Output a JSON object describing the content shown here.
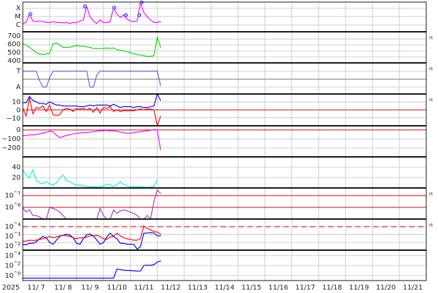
{
  "chart_data": {
    "type": "line",
    "x_axis": {
      "year_label": "2025",
      "tick_labels": [
        "11/ 7",
        "11/ 8",
        "11/ 9",
        "11/10",
        "11/11",
        "11/12",
        "11/13",
        "11/14",
        "11/15",
        "11/16",
        "11/17",
        "11/18",
        "11/19",
        "11/20",
        "11/21"
      ],
      "range": [
        "11/7 00:00",
        "11/22 00:00"
      ],
      "grid": true
    },
    "x": [
      "11/7 00:00",
      "11/7 03:00",
      "11/7 06:00",
      "11/7 09:00",
      "11/7 12:00",
      "11/7 15:00",
      "11/7 18:00",
      "11/7 21:00",
      "11/8 00:00",
      "11/8 03:00",
      "11/8 06:00",
      "11/8 09:00",
      "11/8 12:00",
      "11/8 15:00",
      "11/8 18:00",
      "11/8 21:00",
      "11/9 00:00",
      "11/9 03:00",
      "11/9 06:00",
      "11/9 09:00",
      "11/9 12:00",
      "11/9 15:00",
      "11/9 18:00",
      "11/9 21:00",
      "11/10 00:00",
      "11/10 03:00",
      "11/10 06:00",
      "11/10 09:00",
      "11/10 12:00",
      "11/10 15:00",
      "11/10 18:00",
      "11/10 21:00",
      "11/11 00:00",
      "11/11 03:00",
      "11/11 06:00",
      "11/11 09:00",
      "11/11 12:00",
      "11/11 15:00",
      "11/11 18:00",
      "11/11 21:00",
      "11/12 00:00",
      "11/12 03:00"
    ],
    "panels": [
      {
        "id": "xray",
        "scale": "log",
        "ylim": [
          1.5e-07,
          0.00056
        ],
        "grid": true,
        "ticks": [
          {
            "value": 1e-06,
            "label": "C"
          },
          {
            "value": 1e-05,
            "label": "M"
          },
          {
            "value": 0.0001,
            "label": "X"
          }
        ],
        "series": [
          {
            "color": "#ff00ff",
            "values": [
              1.5e-06,
              2e-06,
              2e-05,
              3e-06,
              2.5e-06,
              3e-06,
              2.5e-06,
              2e-06,
              2e-06,
              2.5e-06,
              2e-06,
              2e-06,
              1.8e-06,
              2e-06,
              1.5e-06,
              2e-06,
              2e-06,
              3e-06,
              4e-06,
              0.00017,
              1e-05,
              3e-06,
              1.5e-06,
              4e-06,
              2e-06,
              2e-06,
              2.5e-06,
              0.00012,
              2e-05,
              8e-06,
              1.5e-05,
              5e-06,
              3e-06,
              2.5e-06,
              3e-06,
              0.0005,
              3e-05,
              1e-05,
              4e-06,
              2e-06,
              2e-06,
              2.5e-06
            ]
          }
        ],
        "flare_markers": {
          "color": "#3333ff",
          "events": [
            {
              "time": "11/7 06:45",
              "flux": 2e-05
            },
            {
              "time": "11/9 07:30",
              "flux": 0.00017
            },
            {
              "time": "11/10 09:30",
              "flux": 0.00012
            },
            {
              "time": "11/10 20:00",
              "flux": 1.5e-05
            },
            {
              "time": "11/11 08:00",
              "flux": 1.5e-05
            },
            {
              "time": "11/11 10:00",
              "flux": 0.0005
            }
          ]
        },
        "right_label": ""
      },
      {
        "id": "speed",
        "scale": "linear",
        "ylim": [
          300,
          820
        ],
        "grid": true,
        "ticks": [
          {
            "value": 400,
            "label": "400"
          },
          {
            "value": 500,
            "label": "500"
          },
          {
            "value": 600,
            "label": "600"
          },
          {
            "value": 700,
            "label": "700"
          }
        ],
        "series": [
          {
            "color": "#00e000",
            "values": [
              620,
              600,
              560,
              520,
              470,
              450,
              440,
              450,
              460,
              620,
              630,
              600,
              560,
              560,
              560,
              580,
              590,
              580,
              580,
              570,
              560,
              540,
              540,
              540,
              540,
              550,
              540,
              550,
              520,
              510,
              500,
              490,
              470,
              455,
              440,
              430,
              420,
              410,
              410,
              420,
              730,
              560
            ]
          }
        ],
        "right_label": "rt"
      },
      {
        "id": "sector",
        "scale": "linear",
        "ylim": [
          -1.87,
          2.04
        ],
        "grid": true,
        "ticks": [
          {
            "value": -1,
            "label": "A"
          },
          {
            "value": 1,
            "label": "T"
          }
        ],
        "zero_line": {
          "value": 0,
          "color": "#777777"
        },
        "series": [
          {
            "color": "#5566dd",
            "values": [
              1,
              1,
              1,
              1,
              1,
              -0.2,
              -1,
              -1,
              0.2,
              1,
              1,
              1,
              1,
              1,
              1,
              1,
              1,
              1,
              1,
              1,
              -1,
              -1,
              0.5,
              1,
              1,
              1,
              1,
              1,
              1,
              1,
              1,
              1,
              1,
              1,
              1,
              1,
              1,
              1,
              1,
              1,
              1,
              -0.8
            ]
          }
        ],
        "right_label": "rt"
      },
      {
        "id": "imf",
        "scale": "linear",
        "ylim": [
          -20,
          20
        ],
        "grid": true,
        "ticks": [
          {
            "value": -10,
            "label": "−10"
          },
          {
            "value": 0,
            "label": "0"
          },
          {
            "value": 10,
            "label": "10"
          }
        ],
        "ref_lines": [
          {
            "value": 0,
            "color": "#cc0000",
            "dashed": false
          }
        ],
        "series": [
          {
            "color": "#0000ff",
            "values": [
              9,
              9,
              17,
              12,
              10,
              8,
              8,
              7,
              10,
              8,
              6,
              6,
              5,
              5,
              5,
              5,
              5,
              4,
              4,
              5,
              6,
              5,
              6,
              6,
              6,
              6,
              5,
              7,
              5,
              3,
              4,
              4,
              4,
              3,
              4,
              4,
              3,
              3,
              4,
              5,
              22,
              12
            ]
          },
          {
            "color": "#ff0000",
            "values": [
              2,
              -8,
              15,
              -5,
              3,
              2,
              5,
              -2,
              6,
              -6,
              -7,
              -6,
              0,
              2,
              1,
              -2,
              2,
              1,
              2,
              0,
              2,
              -3,
              3,
              -4,
              3,
              2,
              4,
              -2,
              0,
              -2,
              -1,
              -1,
              -1,
              -1,
              0,
              1,
              0,
              1,
              1,
              0,
              -25,
              -8
            ]
          }
        ],
        "right_label": "rt"
      },
      {
        "id": "dst",
        "scale": "linear",
        "ylim": [
          -300,
          46
        ],
        "grid": true,
        "ticks": [
          {
            "value": -200,
            "label": "−200"
          },
          {
            "value": -100,
            "label": "−100"
          },
          {
            "value": 0,
            "label": "0"
          }
        ],
        "ref_lines": [
          {
            "value": 0,
            "color": "#cc0000",
            "dashed": false
          }
        ],
        "series": [
          {
            "color": "#ff00ff",
            "values": [
              -65,
              -65,
              -55,
              -55,
              -50,
              -45,
              -35,
              -25,
              -15,
              -20,
              -60,
              -85,
              -75,
              -60,
              -55,
              -45,
              -40,
              -35,
              -30,
              -30,
              -25,
              -20,
              -15,
              -10,
              -8,
              -5,
              -10,
              -12,
              -15,
              -25,
              -30,
              -40,
              -35,
              -30,
              -25,
              -20,
              -15,
              -10,
              -5,
              5,
              0,
              -220
            ]
          }
        ],
        "right_label": ""
      },
      {
        "id": "density",
        "scale": "linear",
        "ylim": [
          0,
          60
        ],
        "grid": true,
        "ticks": [
          {
            "value": 20,
            "label": "20"
          },
          {
            "value": 40,
            "label": "40"
          }
        ],
        "series": [
          {
            "color": "#00f0f0",
            "values": [
              35,
              25,
              20,
              35,
              15,
              10,
              8,
              12,
              8,
              6,
              10,
              18,
              25,
              15,
              12,
              8,
              5,
              6,
              4,
              3,
              2,
              3,
              2,
              2,
              4,
              8,
              5,
              3,
              6,
              12,
              7,
              4,
              3,
              2,
              3,
              2,
              2,
              1,
              2,
              3,
              15,
              null
            ]
          }
        ],
        "right_label": ""
      },
      {
        "id": "electrons",
        "scale": "log",
        "ylim": [
          100000.0,
          44000000.0
        ],
        "grid": true,
        "ticks": [
          {
            "value": 1000000.0,
            "label": "10^6"
          },
          {
            "value": 10000000.0,
            "label": "10^7"
          }
        ],
        "ref_lines": [
          {
            "value": 1000000.0,
            "color": "#cc0000",
            "dashed": false
          },
          {
            "value": 10000000.0,
            "color": "#cc0000",
            "dashed": false
          }
        ],
        "series": [
          {
            "color": "#aa33cc",
            "values": [
              900000.0,
              400000.0,
              600000.0,
              200000.0,
              200000.0,
              150000.0,
              100000.0,
              100000.0,
              1000000.0,
              800000.0,
              600000.0,
              400000.0,
              200000.0,
              100000.0,
              100000.0,
              100000.0,
              100000.0,
              100000.0,
              100000.0,
              100000.0,
              100000.0,
              100000.0,
              100000.0,
              800000.0,
              200000.0,
              100000.0,
              100000.0,
              600000.0,
              300000.0,
              500000.0,
              600000.0,
              500000.0,
              400000.0,
              300000.0,
              200000.0,
              100000.0,
              100000.0,
              200000.0,
              100000.0,
              3000000.0,
              30000000.0,
              15000000.0
            ]
          }
        ],
        "right_label": "rt"
      },
      {
        "id": "protons",
        "scale": "log",
        "ylim": [
          11,
          91000.0
        ],
        "grid": true,
        "ticks": [
          {
            "value": 100,
            "label": "10^2"
          },
          {
            "value": 1000,
            "label": "10^3"
          },
          {
            "value": 10000,
            "label": "10^4"
          }
        ],
        "ref_lines": [
          {
            "value": 10000,
            "color": "#dd2222",
            "dashed": true
          }
        ],
        "series": [
          {
            "color": "#0000ff",
            "values": [
              60,
              50,
              80,
              80,
              120,
              300,
              600,
              400,
              100,
              60,
              200,
              600,
              800,
              1100,
              900,
              400,
              80,
              60,
              300,
              1000,
              1200,
              700,
              200,
              60,
              100,
              500,
              1500,
              600,
              300,
              80,
              80,
              60,
              60,
              60,
              15,
              30,
              1500,
              1600,
              1800,
              1600,
              700,
              700
            ]
          },
          {
            "color": "#ff0000",
            "values": [
              150,
              150,
              200,
              180,
              200,
              250,
              300,
              400,
              600,
              400,
              500,
              700,
              800,
              700,
              600,
              400,
              300,
              400,
              400,
              500,
              700,
              700,
              800,
              600,
              300,
              250,
              500,
              600,
              1500,
              700,
              400,
              300,
              250,
              200,
              200,
              300,
              12000,
              6000,
              4000,
              2500,
              2000,
              1200
            ]
          }
        ],
        "right_label": "rt"
      },
      {
        "id": "high-energy",
        "scale": "log",
        "ylim": [
          0.1,
          120000.0
        ],
        "grid": true,
        "ticks": [
          {
            "value": 1,
            "label": "10^0"
          },
          {
            "value": 100,
            "label": "10^2"
          },
          {
            "value": 10000,
            "label": "10^4"
          }
        ],
        "series": [
          {
            "color": "#0000ff",
            "values": [
              0.3,
              0.3,
              0.3,
              0.3,
              0.3,
              0.3,
              0.3,
              0.3,
              0.3,
              0.3,
              0.3,
              0.3,
              0.3,
              0.3,
              0.3,
              0.3,
              0.3,
              0.3,
              0.3,
              0.3,
              0.3,
              0.3,
              0.3,
              0.3,
              0.3,
              0.3,
              0.3,
              0.3,
              20,
              15,
              12,
              10,
              10,
              9,
              8,
              8,
              100,
              120,
              110,
              150,
              500,
              800
            ]
          }
        ],
        "right_label": ""
      }
    ]
  }
}
